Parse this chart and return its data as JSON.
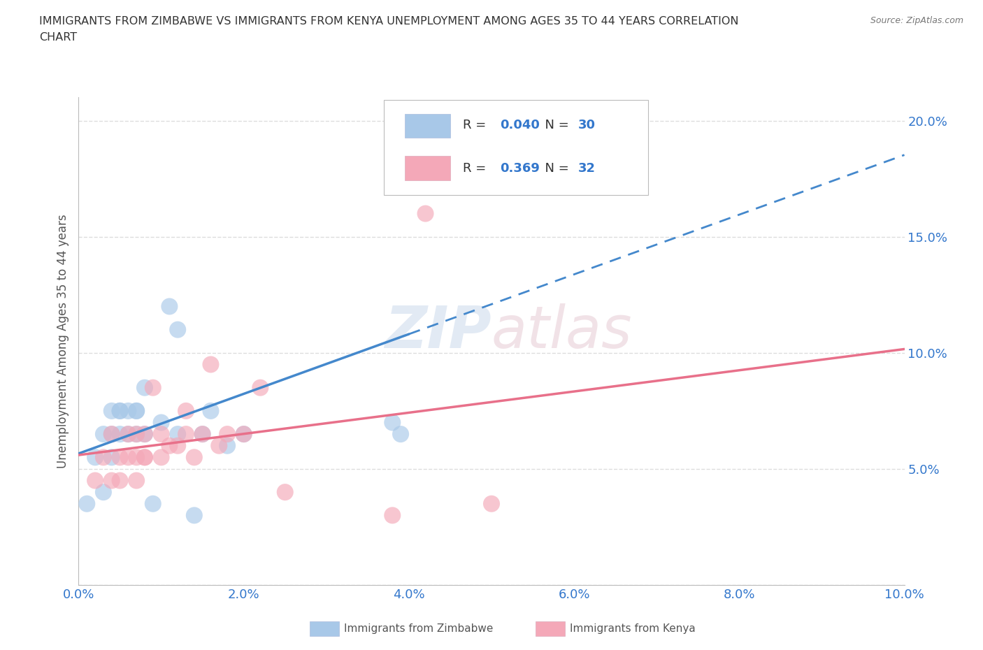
{
  "title_line1": "IMMIGRANTS FROM ZIMBABWE VS IMMIGRANTS FROM KENYA UNEMPLOYMENT AMONG AGES 35 TO 44 YEARS CORRELATION",
  "title_line2": "CHART",
  "source": "Source: ZipAtlas.com",
  "ylabel": "Unemployment Among Ages 35 to 44 years",
  "xlim": [
    0.0,
    0.1
  ],
  "ylim": [
    0.0,
    0.21
  ],
  "xticks": [
    0.0,
    0.02,
    0.04,
    0.06,
    0.08,
    0.1
  ],
  "yticks": [
    0.0,
    0.05,
    0.1,
    0.15,
    0.2
  ],
  "xtick_labels": [
    "0.0%",
    "",
    "",
    "",
    "",
    "10.0%"
  ],
  "ytick_labels": [
    "",
    "5.0%",
    "10.0%",
    "15.0%",
    "20.0%"
  ],
  "zimbabwe_color": "#a8c8e8",
  "kenya_color": "#f4a8b8",
  "zimbabwe_line_color": "#4488cc",
  "kenya_line_color": "#e8708a",
  "zimbabwe_R": "0.040",
  "zimbabwe_N": "30",
  "kenya_R": "0.369",
  "kenya_N": "32",
  "zimbabwe_x": [
    0.001,
    0.002,
    0.003,
    0.003,
    0.004,
    0.004,
    0.004,
    0.005,
    0.005,
    0.005,
    0.006,
    0.006,
    0.007,
    0.007,
    0.007,
    0.008,
    0.008,
    0.009,
    0.01,
    0.011,
    0.012,
    0.012,
    0.014,
    0.015,
    0.016,
    0.018,
    0.02,
    0.038,
    0.039,
    0.04
  ],
  "zimbabwe_y": [
    0.035,
    0.055,
    0.065,
    0.04,
    0.055,
    0.065,
    0.075,
    0.065,
    0.075,
    0.075,
    0.065,
    0.075,
    0.065,
    0.075,
    0.075,
    0.065,
    0.085,
    0.035,
    0.07,
    0.12,
    0.11,
    0.065,
    0.03,
    0.065,
    0.075,
    0.06,
    0.065,
    0.07,
    0.065,
    0.195
  ],
  "kenya_x": [
    0.002,
    0.003,
    0.004,
    0.004,
    0.005,
    0.005,
    0.006,
    0.006,
    0.007,
    0.007,
    0.007,
    0.008,
    0.008,
    0.008,
    0.009,
    0.01,
    0.01,
    0.011,
    0.012,
    0.013,
    0.013,
    0.014,
    0.015,
    0.016,
    0.017,
    0.018,
    0.02,
    0.022,
    0.025,
    0.038,
    0.042,
    0.05
  ],
  "kenya_y": [
    0.045,
    0.055,
    0.045,
    0.065,
    0.045,
    0.055,
    0.055,
    0.065,
    0.045,
    0.055,
    0.065,
    0.055,
    0.065,
    0.055,
    0.085,
    0.055,
    0.065,
    0.06,
    0.06,
    0.065,
    0.075,
    0.055,
    0.065,
    0.095,
    0.06,
    0.065,
    0.065,
    0.085,
    0.04,
    0.03,
    0.16,
    0.035
  ],
  "background_color": "#ffffff",
  "watermark_zip": "ZIP",
  "watermark_atlas": "atlas",
  "grid_color": "#dddddd",
  "zim_trend_solid_end": 0.065,
  "ken_trend_end": 0.095
}
